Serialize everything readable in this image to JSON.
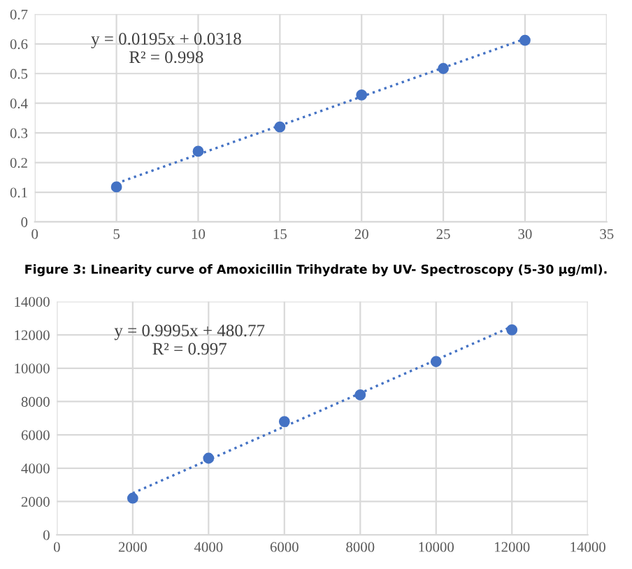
{
  "chart_data": [
    {
      "type": "scatter",
      "annotations": [
        "y = 0.0195x + 0.0318\nR² = 0.998",
        "Figure 3: Linearity curve of Amoxicillin Trihydrate by UV- Spectroscopy (5-30 µg/ml)."
      ],
      "x": [
        5,
        10,
        15,
        20,
        25,
        30
      ],
      "series": [
        {
          "color": "#4472c4",
          "marker": "circle",
          "values": [
            0.118,
            0.238,
            0.32,
            0.428,
            0.517,
            0.612
          ]
        },
        {
          "type": "line",
          "color": "#4472c4",
          "line_style": "dotted",
          "marker": "none",
          "x": [
            5,
            30
          ],
          "values": [
            0.13,
            0.617
          ]
        }
      ],
      "xlim": [
        0,
        35
      ],
      "xticks": [
        0,
        5,
        10,
        15,
        20,
        25,
        30,
        35
      ],
      "ylim": [
        0,
        0.7
      ],
      "yticks": [
        0,
        0.1,
        0.2,
        0.3,
        0.4,
        0.5,
        0.6,
        0.7
      ],
      "grid": true
    },
    {
      "type": "scatter",
      "annotations": [
        "y = 0.9995x + 480.77\nR² = 0.997"
      ],
      "x": [
        2000,
        4000,
        6000,
        8000,
        10000,
        12000
      ],
      "series": [
        {
          "color": "#4472c4",
          "marker": "circle",
          "values": [
            2200,
            4600,
            6800,
            8400,
            10400,
            12300
          ]
        },
        {
          "type": "line",
          "color": "#4472c4",
          "line_style": "dotted",
          "marker": "none",
          "x": [
            2000,
            12000
          ],
          "values": [
            2500,
            12500
          ]
        }
      ],
      "xlim": [
        0,
        14000
      ],
      "xticks": [
        0,
        2000,
        4000,
        6000,
        8000,
        10000,
        12000,
        14000
      ],
      "ylim": [
        0,
        14000
      ],
      "yticks": [
        0,
        2000,
        4000,
        6000,
        8000,
        10000,
        12000,
        14000
      ],
      "grid": true
    }
  ]
}
